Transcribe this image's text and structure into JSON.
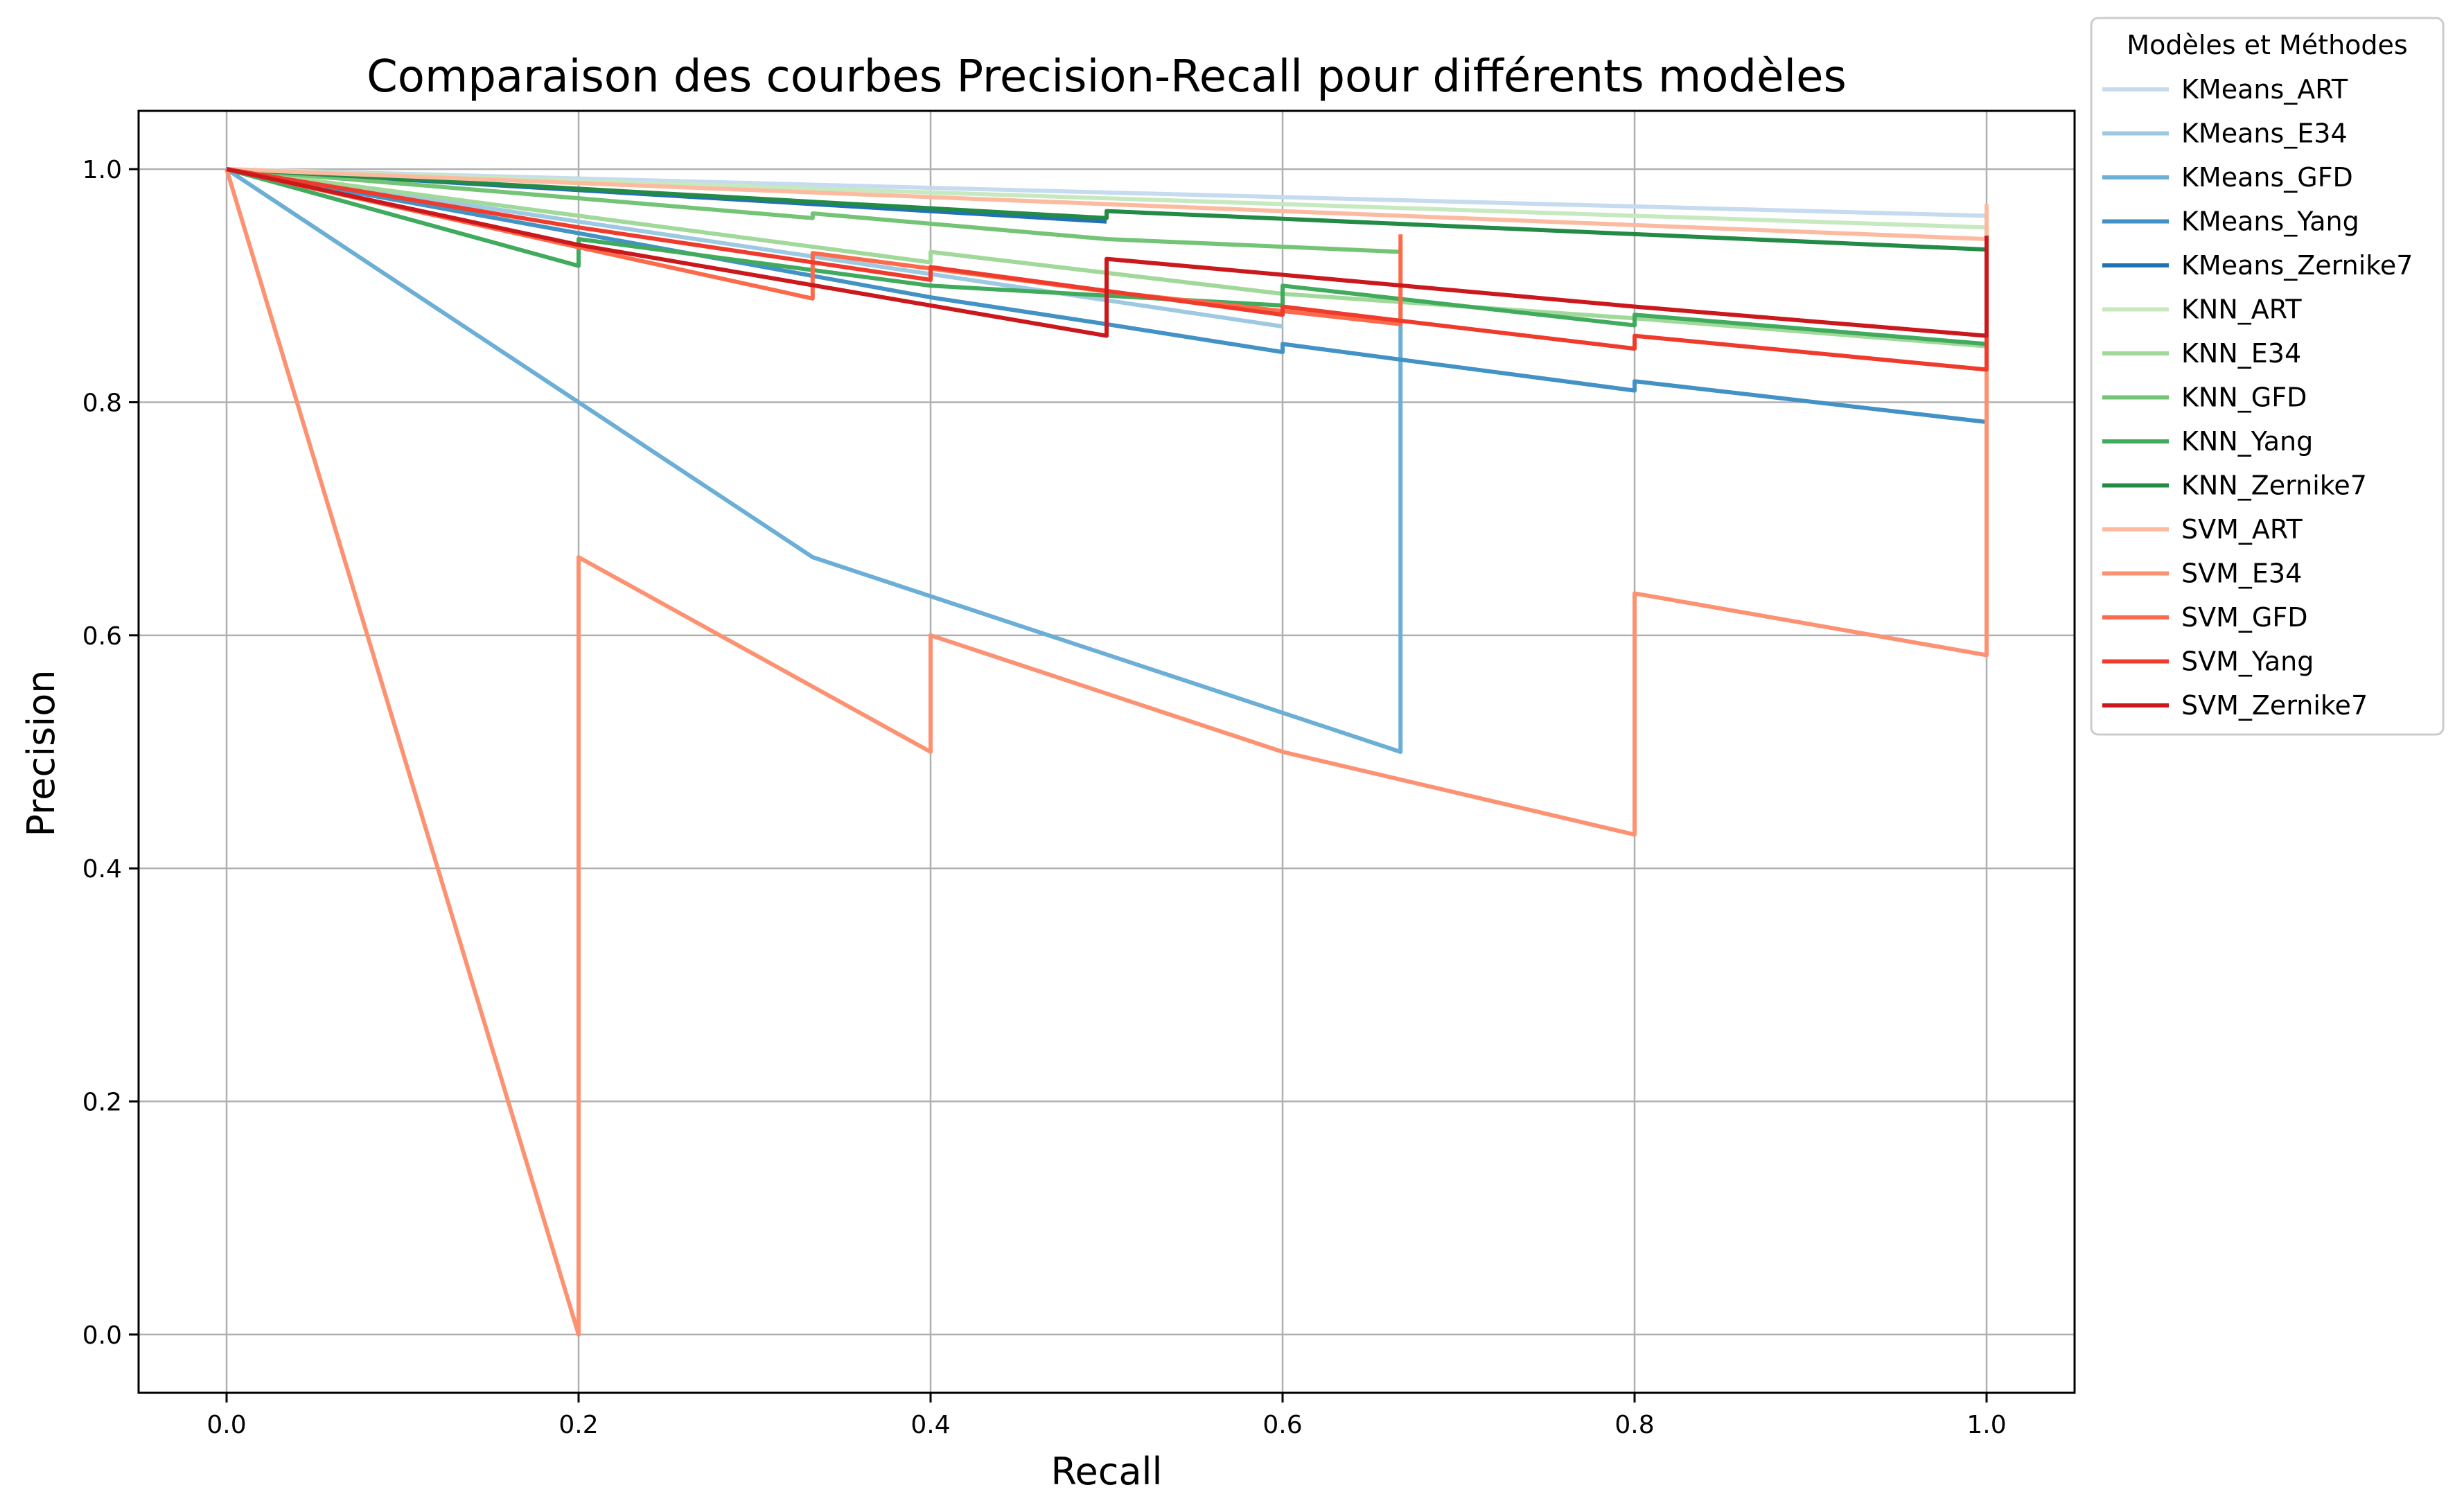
{
  "chart_data": {
    "type": "line",
    "title": "Comparaison des courbes Precision-Recall pour différents modèles",
    "xlabel": "Recall",
    "ylabel": "Precision",
    "xlim": [
      -0.05,
      1.05
    ],
    "ylim": [
      -0.05,
      1.05
    ],
    "x_ticks": [
      "0.0",
      "0.2",
      "0.4",
      "0.6",
      "0.8",
      "1.0"
    ],
    "y_ticks": [
      "0.0",
      "0.2",
      "0.4",
      "0.6",
      "0.8",
      "1.0"
    ],
    "grid": true,
    "legend": {
      "title": "Modèles et Méthodes",
      "placement": "outside-top-right"
    },
    "series": [
      {
        "name": "KMeans_ART",
        "color": "#c6dbef",
        "points": [
          [
            0,
            1.0
          ],
          [
            1.0,
            0.96
          ]
        ]
      },
      {
        "name": "KMeans_E34",
        "color": "#9ecae1",
        "points": [
          [
            0,
            1.0
          ],
          [
            0.2,
            0.955
          ],
          [
            0.4,
            0.91
          ],
          [
            0.6,
            0.865
          ]
        ]
      },
      {
        "name": "KMeans_GFD",
        "color": "#6baed6",
        "points": [
          [
            0,
            1.0
          ],
          [
            0.2,
            0.8
          ],
          [
            0.333,
            0.667
          ],
          [
            0.667,
            0.5
          ],
          [
            0.667,
            0.889
          ]
        ]
      },
      {
        "name": "KMeans_Yang",
        "color": "#4292c6",
        "points": [
          [
            0,
            1.0
          ],
          [
            0.2,
            0.945
          ],
          [
            0.4,
            0.89
          ],
          [
            0.5,
            0.867
          ],
          [
            0.6,
            0.843
          ],
          [
            0.6,
            0.85
          ],
          [
            0.8,
            0.81
          ],
          [
            0.8,
            0.818
          ],
          [
            1.0,
            0.783
          ]
        ]
      },
      {
        "name": "KMeans_Zernike7",
        "color": "#2171b5",
        "points": [
          [
            0,
            1.0
          ],
          [
            0.5,
            0.955
          ]
        ]
      },
      {
        "name": "KNN_ART",
        "color": "#c7e9c0",
        "points": [
          [
            0,
            1.0
          ],
          [
            1.0,
            0.95
          ]
        ]
      },
      {
        "name": "KNN_E34",
        "color": "#a1d99b",
        "points": [
          [
            0,
            1.0
          ],
          [
            0.2,
            0.96
          ],
          [
            0.4,
            0.92
          ],
          [
            0.4,
            0.929
          ],
          [
            0.6,
            0.893
          ],
          [
            0.8,
            0.872
          ],
          [
            1.0,
            0.848
          ]
        ]
      },
      {
        "name": "KNN_GFD",
        "color": "#74c476",
        "points": [
          [
            0,
            1.0
          ],
          [
            0.2,
            0.975
          ],
          [
            0.333,
            0.958
          ],
          [
            0.333,
            0.962
          ],
          [
            0.5,
            0.94
          ],
          [
            0.667,
            0.929
          ]
        ]
      },
      {
        "name": "KNN_Yang",
        "color": "#41ab5d",
        "points": [
          [
            0,
            1.0
          ],
          [
            0.2,
            0.917
          ],
          [
            0.2,
            0.94
          ],
          [
            0.4,
            0.9
          ],
          [
            0.6,
            0.883
          ],
          [
            0.6,
            0.9
          ],
          [
            0.8,
            0.866
          ],
          [
            0.8,
            0.875
          ],
          [
            1.0,
            0.85
          ]
        ]
      },
      {
        "name": "KNN_Zernike7",
        "color": "#238b45",
        "points": [
          [
            0,
            1.0
          ],
          [
            0.5,
            0.958
          ],
          [
            0.5,
            0.964
          ],
          [
            1.0,
            0.931
          ]
        ]
      },
      {
        "name": "SVM_ART",
        "color": "#fcbba1",
        "points": [
          [
            0,
            1.0
          ],
          [
            1.0,
            0.94
          ],
          [
            1.0,
            0.97
          ]
        ]
      },
      {
        "name": "SVM_E34",
        "color": "#fc9272",
        "points": [
          [
            0,
            1.0
          ],
          [
            0.2,
            0.0
          ],
          [
            0.2,
            0.667
          ],
          [
            0.4,
            0.5
          ],
          [
            0.4,
            0.6
          ],
          [
            0.6,
            0.5
          ],
          [
            0.8,
            0.429
          ],
          [
            0.8,
            0.636
          ],
          [
            1.0,
            0.583
          ],
          [
            1.0,
            0.942
          ]
        ]
      },
      {
        "name": "SVM_GFD",
        "color": "#fb6a4a",
        "points": [
          [
            0,
            1.0
          ],
          [
            0.2,
            0.933
          ],
          [
            0.333,
            0.889
          ],
          [
            0.333,
            0.928
          ],
          [
            0.5,
            0.895
          ],
          [
            0.667,
            0.867
          ],
          [
            0.667,
            0.944
          ]
        ]
      },
      {
        "name": "SVM_Yang",
        "color": "#ef3b2c",
        "points": [
          [
            0,
            1.0
          ],
          [
            0.2,
            0.95
          ],
          [
            0.4,
            0.905
          ],
          [
            0.4,
            0.916
          ],
          [
            0.6,
            0.875
          ],
          [
            0.6,
            0.882
          ],
          [
            0.8,
            0.846
          ],
          [
            0.8,
            0.857
          ],
          [
            1.0,
            0.828
          ],
          [
            1.0,
            0.878
          ]
        ]
      },
      {
        "name": "SVM_Zernike7",
        "color": "#cb181d",
        "points": [
          [
            0,
            1.0
          ],
          [
            0.2,
            0.935
          ],
          [
            0.5,
            0.857
          ],
          [
            0.5,
            0.923
          ],
          [
            0.8,
            0.882
          ],
          [
            1.0,
            0.857
          ],
          [
            1.0,
            0.943
          ]
        ]
      }
    ]
  }
}
